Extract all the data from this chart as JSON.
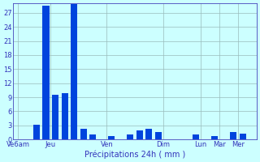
{
  "title": "Précipitations 24h ( mm )",
  "bar_color": "#0044dd",
  "bg_color": "#ccffff",
  "grid_color": "#99bbbb",
  "axis_color": "#4444bb",
  "text_color": "#3333bb",
  "ylim": [
    0,
    29
  ],
  "yticks": [
    0,
    3,
    6,
    9,
    12,
    15,
    18,
    21,
    24,
    27
  ],
  "bar_values": [
    0,
    0,
    3.2,
    28.5,
    9.5,
    9.8,
    28.8,
    2.2,
    1.0,
    0,
    0.8,
    0,
    1.0,
    2.0,
    2.2,
    1.5,
    0,
    0,
    0,
    1.0,
    0,
    0.8,
    0,
    1.5,
    1.2,
    0
  ],
  "n_bars": 26,
  "x_tick_positions": [
    0,
    3.5,
    9.5,
    15.5,
    19.5,
    21.5,
    23.5
  ],
  "x_tick_labels": [
    "Ve6am",
    "Jeu",
    "Ven",
    "Dim",
    "Lun",
    "Mar",
    "Mer"
  ],
  "bar_width": 0.7,
  "xlabel_fontsize": 7,
  "ytick_fontsize": 6,
  "xtick_fontsize": 6
}
